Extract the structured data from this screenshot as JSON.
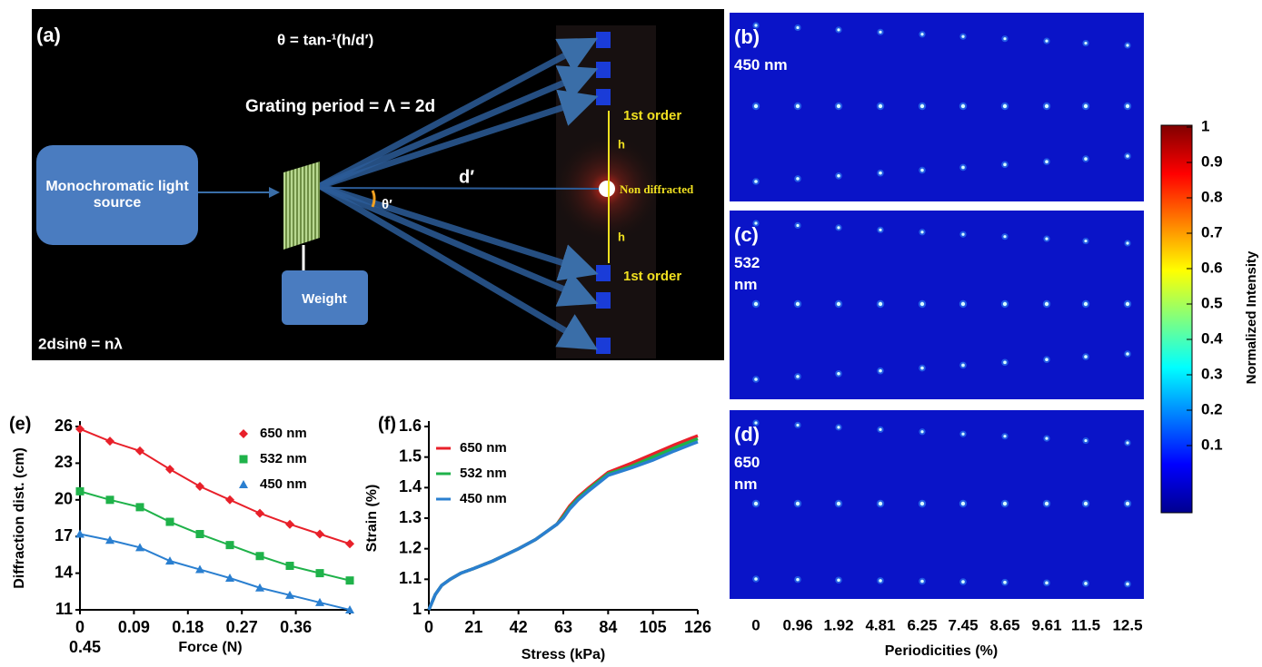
{
  "panel_a": {
    "label": "(a)",
    "formula": "θ = tan-¹(h/d′)",
    "grating": "Grating period = Λ = 2d",
    "source": "Monochromatic light source",
    "weight": "Weight",
    "bragg": "2dsinθ = nλ",
    "d_prime": "d′",
    "theta_prime": "θ′",
    "h_top": "h",
    "h_bottom": "h",
    "order_top": "1st order",
    "order_bottom": "1st order",
    "non_diffracted": "Non diffracted"
  },
  "maps": [
    {
      "label": "(b)",
      "wavelength": "450 nm"
    },
    {
      "label": "(c)",
      "wavelength": "532 nm"
    },
    {
      "label": "(d)",
      "wavelength": "650 nm"
    }
  ],
  "periodicity": {
    "labels": [
      "0",
      "0.96",
      "1.92",
      "4.81",
      "6.25",
      "7.45",
      "8.65",
      "9.61",
      "11.5",
      "12.5"
    ],
    "title": "Periodicities (%)"
  },
  "colorbar": {
    "label": "Normalized Intensity",
    "lim": [
      0,
      1
    ],
    "ticks": [
      0.1,
      0.2,
      0.3,
      0.4,
      0.5,
      0.6,
      0.7,
      0.8,
      0.9,
      1
    ]
  },
  "chart_data": [
    {
      "type": "line",
      "label": "(e)",
      "x_label": "Force (N)",
      "y_label": "Diffraction dist. (cm)",
      "x": [
        0,
        0.05,
        0.1,
        0.15,
        0.2,
        0.25,
        0.3,
        0.35,
        0.4,
        0.45
      ],
      "xlim": [
        0,
        0.45
      ],
      "xticks": [
        0,
        0.09,
        0.18,
        0.27,
        0.36,
        0.45
      ],
      "ylim": [
        11,
        26
      ],
      "yticks": [
        11,
        14,
        17,
        20,
        23,
        26
      ],
      "series": [
        {
          "name": "650 nm",
          "color": "#e8202a",
          "marker": "diamond",
          "values": [
            25.8,
            24.8,
            24.0,
            22.5,
            21.1,
            20.0,
            18.9,
            18.0,
            17.2,
            16.4
          ]
        },
        {
          "name": "532 nm",
          "color": "#1fb24a",
          "marker": "square",
          "values": [
            20.7,
            20.0,
            19.4,
            18.2,
            17.2,
            16.3,
            15.4,
            14.6,
            14.0,
            13.4
          ]
        },
        {
          "name": "450 nm",
          "color": "#2a7fd0",
          "marker": "triangle",
          "values": [
            17.2,
            16.7,
            16.1,
            15.0,
            14.3,
            13.6,
            12.8,
            12.2,
            11.6,
            11.0
          ]
        }
      ]
    },
    {
      "type": "line",
      "label": "(f)",
      "x_label": "Stress (kPa)",
      "y_label": "Strain (%)",
      "x": [
        0,
        3,
        6,
        10,
        15,
        21,
        30,
        42,
        50,
        56,
        60,
        63,
        66,
        70,
        75,
        84,
        95,
        105,
        115,
        126
      ],
      "xlim": [
        0,
        126
      ],
      "xticks": [
        0,
        21,
        42,
        63,
        84,
        105,
        126
      ],
      "ylim": [
        1,
        1.6
      ],
      "yticks": [
        1,
        1.1,
        1.2,
        1.3,
        1.4,
        1.5,
        1.6
      ],
      "series": [
        {
          "name": "650 nm",
          "color": "#e8202a",
          "values": [
            1.0,
            1.05,
            1.08,
            1.1,
            1.12,
            1.135,
            1.16,
            1.2,
            1.23,
            1.26,
            1.28,
            1.31,
            1.34,
            1.37,
            1.4,
            1.45,
            1.48,
            1.51,
            1.54,
            1.57
          ]
        },
        {
          "name": "532 nm",
          "color": "#1fb24a",
          "values": [
            1.0,
            1.05,
            1.08,
            1.1,
            1.12,
            1.135,
            1.16,
            1.2,
            1.23,
            1.26,
            1.28,
            1.305,
            1.335,
            1.365,
            1.395,
            1.445,
            1.47,
            1.5,
            1.53,
            1.56
          ]
        },
        {
          "name": "450 nm",
          "color": "#2a7fd0",
          "values": [
            1.0,
            1.05,
            1.08,
            1.1,
            1.12,
            1.135,
            1.16,
            1.2,
            1.23,
            1.26,
            1.28,
            1.3,
            1.33,
            1.36,
            1.39,
            1.44,
            1.465,
            1.49,
            1.52,
            1.55
          ]
        }
      ]
    }
  ]
}
